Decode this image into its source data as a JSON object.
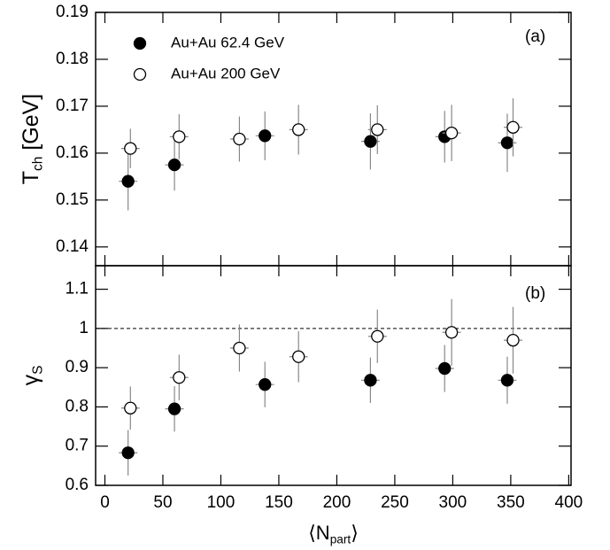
{
  "chart_data": [
    {
      "type": "scatter",
      "annotation": "(a)",
      "ylabel": {
        "base": "T",
        "sub": "ch",
        "after": " [GeV]"
      },
      "xlim": [
        -8,
        402
      ],
      "xticks": [
        0,
        50,
        100,
        150,
        200,
        250,
        300,
        350,
        400
      ],
      "ylim": [
        0.136,
        0.19
      ],
      "yticks": [
        0.14,
        0.15,
        0.16,
        0.17,
        0.18,
        0.19
      ],
      "legend": "upper-left",
      "series": [
        {
          "name": "Au+Au 62.4 GeV",
          "color": "#000000",
          "marker": "filled",
          "x": [
            20,
            60,
            138,
            229,
            293,
            347
          ],
          "xerr": [
            8,
            8,
            8,
            8,
            8,
            8
          ],
          "values": [
            0.154,
            0.1575,
            0.1637,
            0.1625,
            0.1635,
            0.1622
          ],
          "yerr": [
            0.0062,
            0.0055,
            0.0052,
            0.006,
            0.0055,
            0.0062
          ]
        },
        {
          "name": "Au+Au 200 GeV",
          "color": "#000000",
          "marker": "open",
          "x": [
            22,
            64,
            116,
            167,
            235,
            299,
            352
          ],
          "xerr": [
            8,
            8,
            8,
            8,
            8,
            8,
            8
          ],
          "values": [
            0.161,
            0.1635,
            0.163,
            0.165,
            0.165,
            0.1643,
            0.1655
          ],
          "yerr": [
            0.0042,
            0.0048,
            0.0048,
            0.0053,
            0.0052,
            0.006,
            0.0062
          ]
        }
      ]
    },
    {
      "type": "scatter",
      "annotation": "(b)",
      "ylabel": {
        "base": "γ",
        "sub": "S",
        "after": ""
      },
      "xlabel": {
        "base": "⟨N",
        "sub": "part",
        "after": "⟩"
      },
      "xlim": [
        -8,
        402
      ],
      "xticks": [
        0,
        50,
        100,
        150,
        200,
        250,
        300,
        350,
        400
      ],
      "ylim": [
        0.6,
        1.16
      ],
      "yticks": [
        0.6,
        0.7,
        0.8,
        0.9,
        1,
        1.1
      ],
      "hline": 1,
      "series": [
        {
          "color": "#000000",
          "marker": "filled",
          "x": [
            20,
            60,
            138,
            229,
            293,
            347
          ],
          "xerr": [
            8,
            8,
            8,
            8,
            8,
            8
          ],
          "values": [
            0.683,
            0.795,
            0.857,
            0.868,
            0.898,
            0.868
          ],
          "yerr": [
            0.058,
            0.058,
            0.058,
            0.058,
            0.06,
            0.06
          ]
        },
        {
          "color": "#000000",
          "marker": "open",
          "x": [
            22,
            64,
            116,
            167,
            235,
            299,
            352
          ],
          "xerr": [
            8,
            8,
            8,
            8,
            8,
            8,
            8
          ],
          "values": [
            0.797,
            0.875,
            0.95,
            0.928,
            0.98,
            0.99,
            0.97
          ],
          "yerr": [
            0.055,
            0.058,
            0.06,
            0.065,
            0.068,
            0.085,
            0.085
          ]
        }
      ]
    }
  ]
}
